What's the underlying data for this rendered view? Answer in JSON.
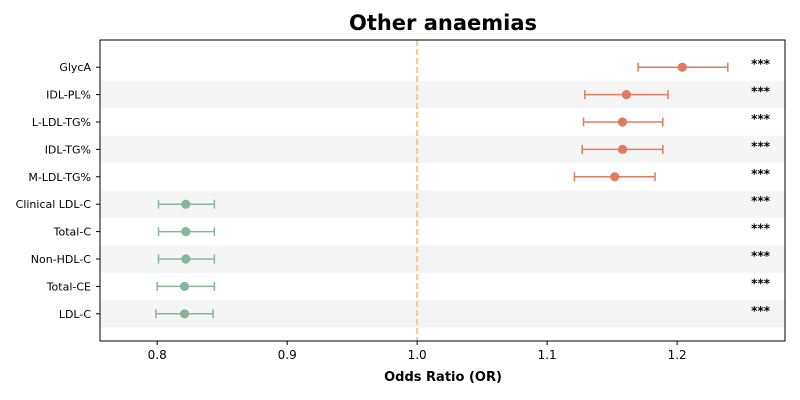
{
  "chart_data": {
    "type": "forest",
    "title": "Other anaemias",
    "xlabel": "Odds Ratio (OR)",
    "ylabel": "",
    "xlim": [
      0.756,
      1.283
    ],
    "xticks": [
      "0.8",
      "0.9",
      "1.0",
      "1.1",
      "1.2"
    ],
    "xtick_values": [
      0.8,
      0.9,
      1.0,
      1.1,
      1.2
    ],
    "reference_line": 1.0,
    "reference_color": "#f5c88a",
    "positive_color": "#e07b5f",
    "negative_color": "#85b59a",
    "stripe_color": "#f5f5f5",
    "rows": [
      {
        "label": "GlycA",
        "or": 1.204,
        "lo": 1.17,
        "hi": 1.239,
        "sig": "***"
      },
      {
        "label": "IDL-PL%",
        "or": 1.161,
        "lo": 1.129,
        "hi": 1.193,
        "sig": "***"
      },
      {
        "label": "L-LDL-TG%",
        "or": 1.158,
        "lo": 1.128,
        "hi": 1.189,
        "sig": "***"
      },
      {
        "label": "IDL-TG%",
        "or": 1.158,
        "lo": 1.127,
        "hi": 1.189,
        "sig": "***"
      },
      {
        "label": "M-LDL-TG%",
        "or": 1.152,
        "lo": 1.121,
        "hi": 1.183,
        "sig": "***"
      },
      {
        "label": "Clinical LDL-C",
        "or": 0.822,
        "lo": 0.801,
        "hi": 0.844,
        "sig": "***"
      },
      {
        "label": "Total-C",
        "or": 0.822,
        "lo": 0.801,
        "hi": 0.844,
        "sig": "***"
      },
      {
        "label": "Non-HDL-C",
        "or": 0.822,
        "lo": 0.801,
        "hi": 0.844,
        "sig": "***"
      },
      {
        "label": "Total-CE",
        "or": 0.821,
        "lo": 0.8,
        "hi": 0.844,
        "sig": "***"
      },
      {
        "label": "LDL-C",
        "or": 0.821,
        "lo": 0.799,
        "hi": 0.843,
        "sig": "***"
      }
    ]
  }
}
